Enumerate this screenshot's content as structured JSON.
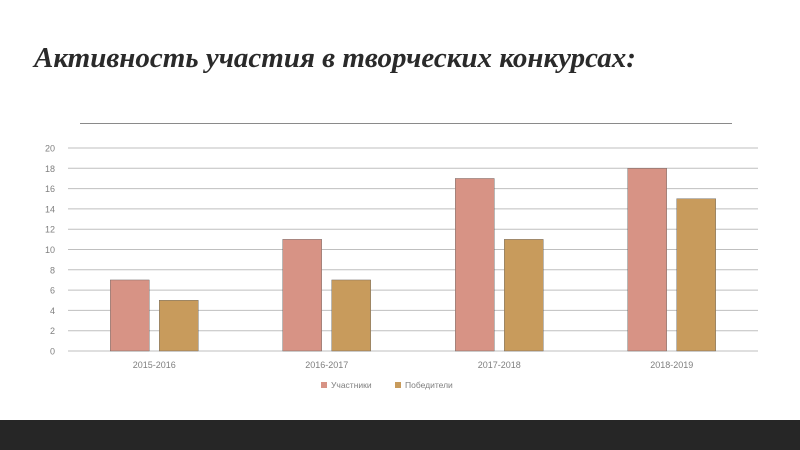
{
  "slide": {
    "title": "Активность участия в творческих конкурсах:"
  },
  "chart_data": {
    "type": "bar",
    "title": "",
    "xlabel": "",
    "ylabel": "",
    "categories": [
      "2015-2016",
      "2016-2017",
      "2017-2018",
      "2018-2019"
    ],
    "series": [
      {
        "name": "Участники",
        "values": [
          7,
          11,
          17,
          18
        ],
        "color": "#d79385"
      },
      {
        "name": "Победители",
        "values": [
          5,
          7,
          11,
          15
        ],
        "color": "#c89b5c"
      }
    ],
    "ylim": [
      0,
      20
    ],
    "yticks": [
      0,
      2,
      4,
      6,
      8,
      10,
      12,
      14,
      16,
      18,
      20
    ],
    "grid": true,
    "legend_position": "bottom"
  },
  "colors": {
    "gridline": "#bfbfbf",
    "axis_text": "#7f7f7f",
    "footer": "#262626"
  }
}
